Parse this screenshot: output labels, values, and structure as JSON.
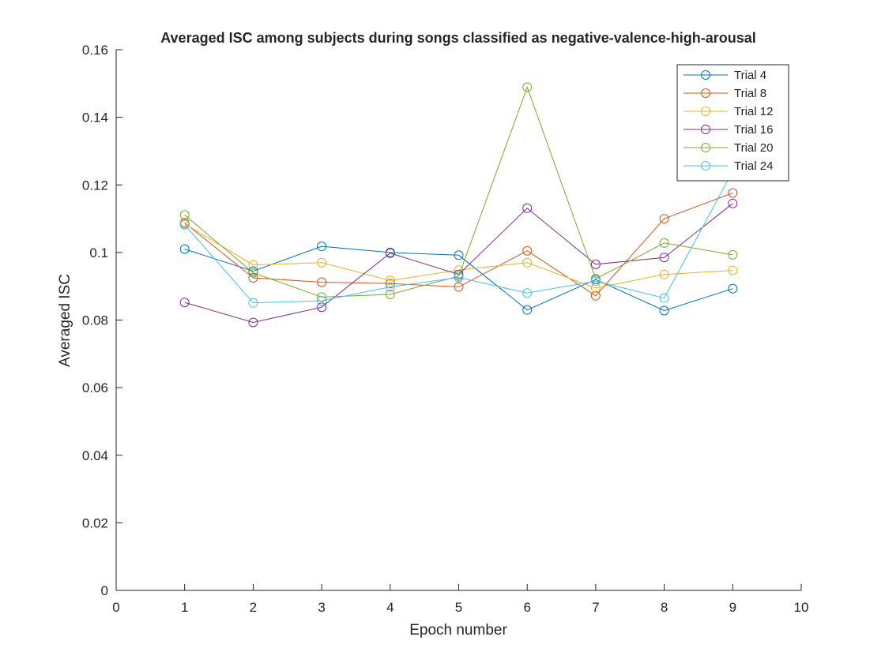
{
  "chart_data": {
    "type": "line",
    "title": "Averaged ISC among subjects during songs classified as negative-valence-high-arousal",
    "xlabel": "Epoch number",
    "ylabel": "Averaged ISC",
    "xlim": [
      0,
      10
    ],
    "ylim": [
      0,
      0.16
    ],
    "xticks": [
      "0",
      "1",
      "2",
      "3",
      "4",
      "5",
      "6",
      "7",
      "8",
      "9",
      "10"
    ],
    "yticks": [
      "0",
      "0.02",
      "0.04",
      "0.06",
      "0.08",
      "0.1",
      "0.12",
      "0.14",
      "0.16"
    ],
    "grid": false,
    "legend_position": "top-right",
    "marker": "circle",
    "x": [
      1,
      2,
      3,
      4,
      5,
      6,
      7,
      8,
      9
    ],
    "series": [
      {
        "name": "Trial 4",
        "color": "#0072BD",
        "values": [
          0.101,
          0.0945,
          0.1018,
          0.1,
          0.0992,
          0.083,
          0.092,
          0.0828,
          0.0893
        ]
      },
      {
        "name": "Trial 8",
        "color": "#D95319",
        "values": [
          0.1088,
          0.0925,
          0.0912,
          0.0908,
          0.0898,
          0.1005,
          0.0872,
          0.11,
          0.1176
        ]
      },
      {
        "name": "Trial 12",
        "color": "#EDB120",
        "values": [
          0.1085,
          0.0963,
          0.097,
          0.0917,
          0.0948,
          0.097,
          0.0895,
          0.0935,
          0.0947
        ]
      },
      {
        "name": "Trial 16",
        "color": "#7E2F8E",
        "values": [
          0.0852,
          0.0793,
          0.0838,
          0.0998,
          0.0935,
          0.1131,
          0.0965,
          0.0985,
          0.1145
        ]
      },
      {
        "name": "Trial 20",
        "color": "#77AC30",
        "values": [
          0.1111,
          0.094,
          0.0868,
          0.0876,
          0.093,
          0.1489,
          0.0922,
          0.1028,
          0.0993
        ]
      },
      {
        "name": "Trial 24",
        "color": "#4DBEEE",
        "values": [
          0.1082,
          0.0851,
          0.0857,
          0.0898,
          0.0926,
          0.088,
          0.0915,
          0.0865,
          0.124
        ]
      }
    ]
  }
}
